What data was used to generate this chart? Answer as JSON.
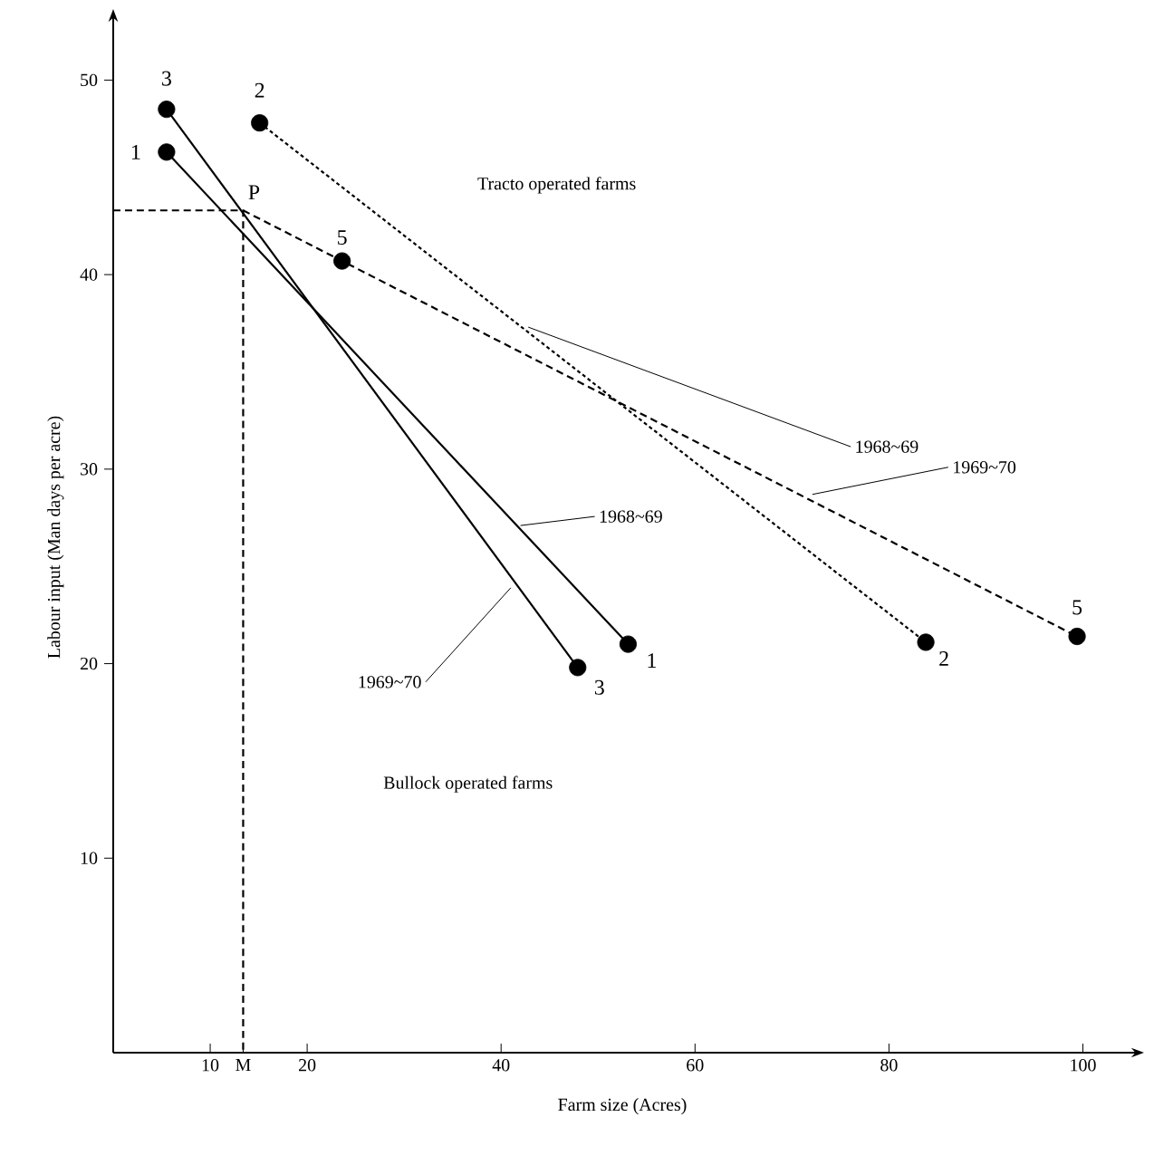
{
  "chart_data": {
    "type": "line",
    "xlabel": "Farm size (Acres)",
    "ylabel": "Labour input (Man days per acre)",
    "xlim": [
      0,
      105
    ],
    "ylim": [
      0,
      53
    ],
    "xticks": [
      10,
      {
        "value": 13.4,
        "label": "M"
      },
      20,
      40,
      60,
      80,
      100
    ],
    "yticks": [
      10,
      20,
      30,
      40,
      50
    ],
    "series": [
      {
        "x": [
          5.5,
          53.1
        ],
        "values": [
          46.3,
          21.0
        ],
        "color": "#000000",
        "line_style": "solid",
        "marker": "none"
      },
      {
        "x": [
          5.5,
          47.9
        ],
        "values": [
          48.5,
          19.8
        ],
        "color": "#000000",
        "line_style": "solid",
        "marker": "none"
      },
      {
        "x": [
          15.1,
          83.8
        ],
        "values": [
          47.8,
          21.1
        ],
        "color": "#000000",
        "line_style": "dotted",
        "marker": "none"
      },
      {
        "x": [
          13.4,
          23.6,
          99.4
        ],
        "values": [
          43.3,
          40.7,
          21.4
        ],
        "color": "#000000",
        "line_style": "dashed",
        "marker": "none"
      },
      {
        "x": [
          0,
          13.4,
          13.4
        ],
        "values": [
          43.3,
          43.3,
          0
        ],
        "color": "#000000",
        "line_style": "dashed",
        "marker": "none"
      },
      {
        "type": "scatter",
        "x": [
          5.5,
          53.1,
          5.5,
          47.9,
          15.1,
          83.8,
          23.6,
          99.4
        ],
        "values": [
          46.3,
          21.0,
          48.5,
          19.8,
          47.8,
          21.1,
          40.7,
          21.4
        ],
        "color": "#000000",
        "marker": "circle"
      }
    ],
    "annotations": [
      {
        "text": "3",
        "x": 5.5,
        "y": 48.5
      },
      {
        "text": "1",
        "x": 5.5,
        "y": 46.3
      },
      {
        "text": "2",
        "x": 15.1,
        "y": 47.8
      },
      {
        "text": "5",
        "x": 23.6,
        "y": 40.7
      },
      {
        "text": "P",
        "x": 13.4,
        "y": 43.3
      },
      {
        "text": "1",
        "x": 53.1,
        "y": 21.0
      },
      {
        "text": "3",
        "x": 47.9,
        "y": 19.8
      },
      {
        "text": "2",
        "x": 83.8,
        "y": 21.1
      },
      {
        "text": "5",
        "x": 99.4,
        "y": 21.4
      },
      {
        "text": "1968~69",
        "x": 42.8,
        "y": 37.3
      },
      {
        "text": "1969~70",
        "x": 72.1,
        "y": 28.7
      },
      {
        "text": "1968~69",
        "x": 42.0,
        "y": 27.1
      },
      {
        "text": "1969~70",
        "x": 41.0,
        "y": 23.9
      },
      "Tracto operated farms",
      "Bullock operated farms"
    ]
  }
}
